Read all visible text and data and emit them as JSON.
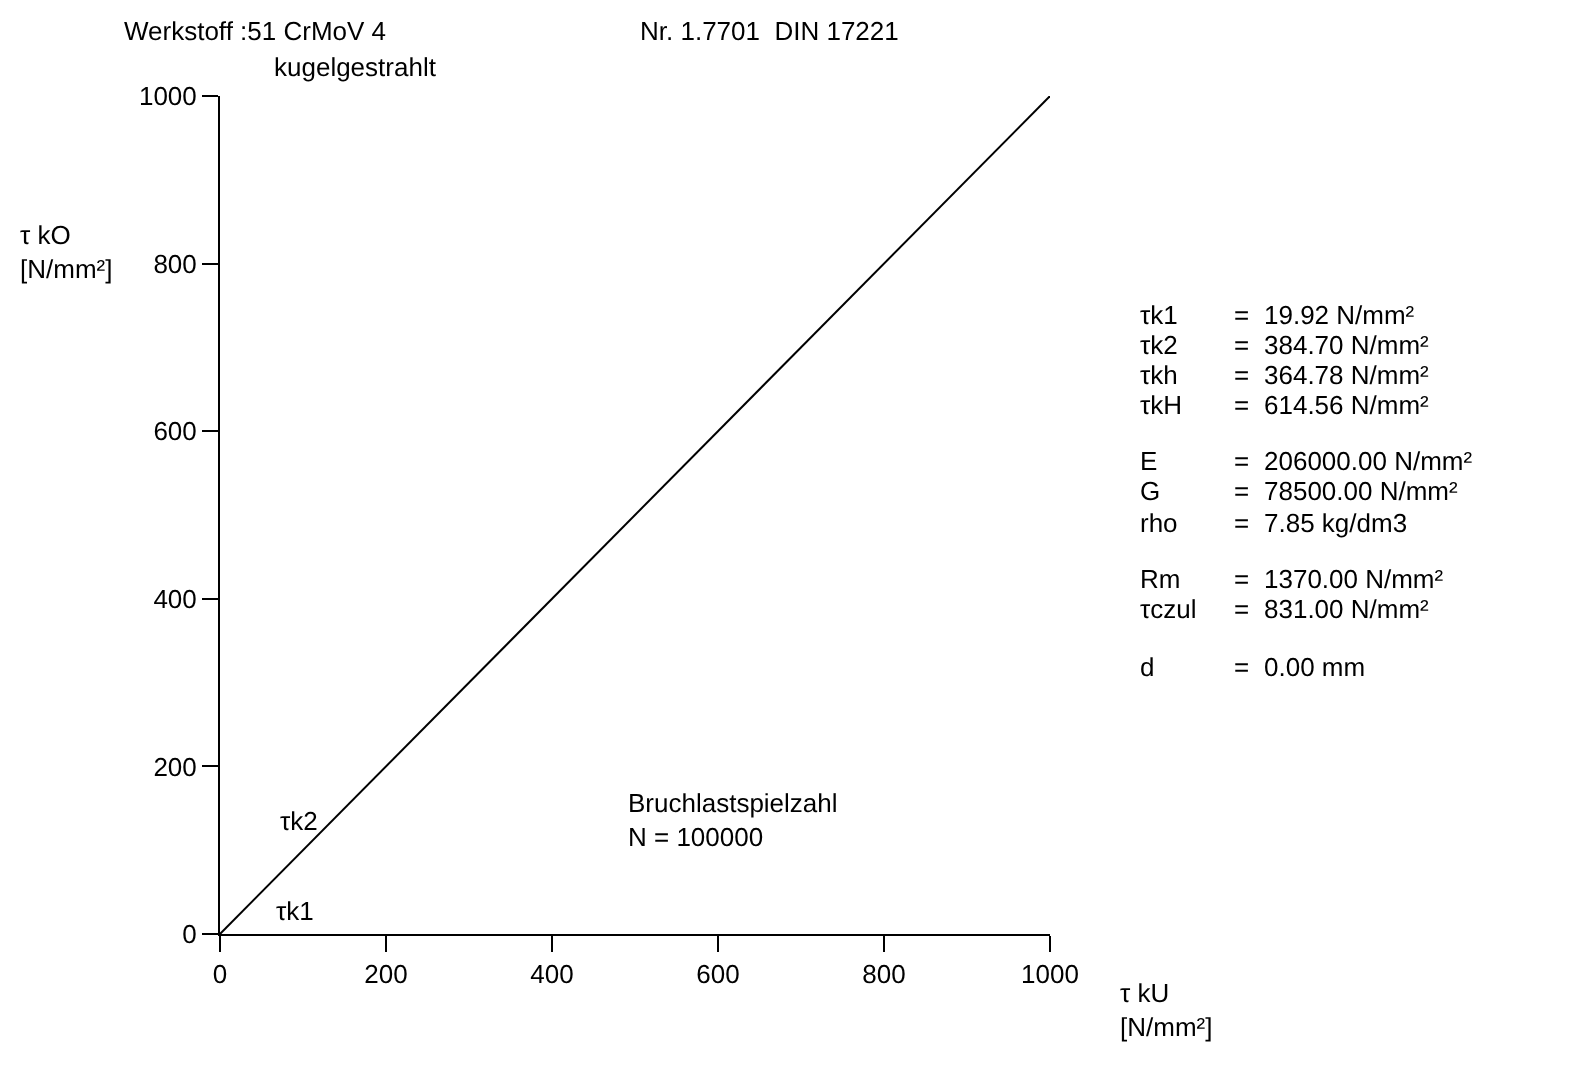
{
  "chart_data": {
    "type": "line",
    "title": "Werkstoff :51 CrMoV 4",
    "subtitle": "kugelgestrahlt",
    "xlabel": "τ kU\n[N/mm²]",
    "ylabel": "τ kO\n[N/mm²]",
    "x": [
      0,
      1000
    ],
    "series": [
      {
        "color": "#000000",
        "values": [
          0,
          1000
        ]
      }
    ],
    "xlim": [
      0,
      1000
    ],
    "ylim": [
      0,
      1000
    ],
    "xticks": [
      0,
      200,
      400,
      600,
      800,
      1000
    ],
    "yticks": [
      0,
      200,
      400,
      600,
      800,
      1000
    ],
    "legend": false,
    "annotations": [
      "Nr. 1.7701  DIN 17221",
      "τk2",
      "τk1",
      "Bruchlastspielzahl\nN = 100000",
      "τk1 = 19.92 N/mm²",
      "τk2 = 384.70 N/mm²",
      "τkh = 364.78 N/mm²",
      "τkH = 614.56 N/mm²",
      "E = 206000.00 N/mm²",
      "G = 78500.00 N/mm²",
      "rho = 7.85 kg/dm3",
      "Rm = 1370.00 N/mm²",
      "τczul = 831.00 N/mm²",
      "d = 0.00 mm"
    ]
  }
}
